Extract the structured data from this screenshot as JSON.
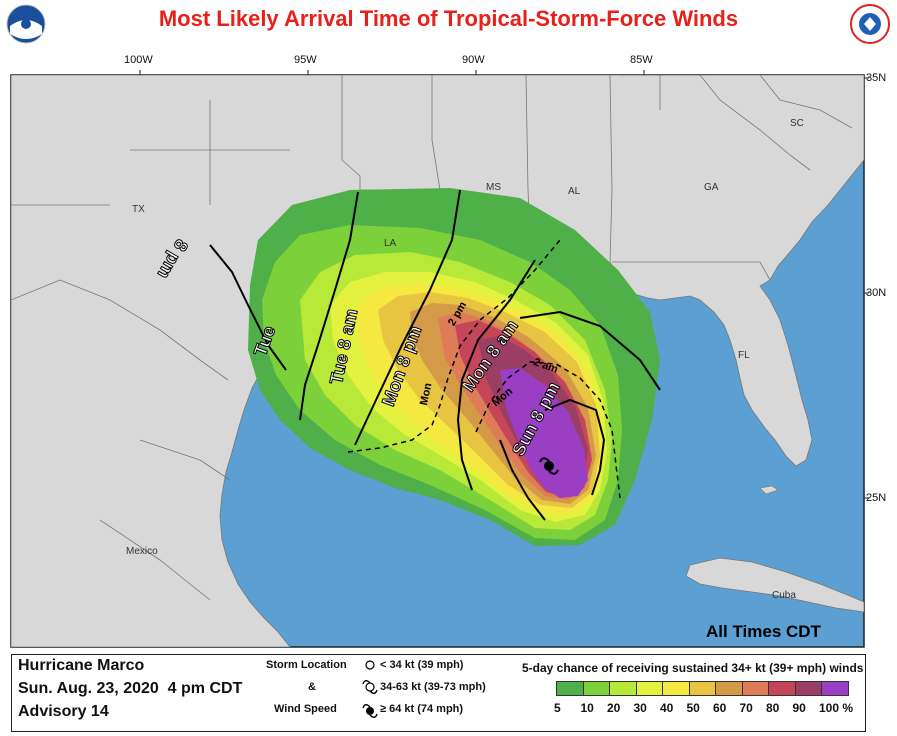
{
  "title": "Most Likely Arrival Time of Tropical-Storm-Force Winds",
  "logos": {
    "left": "noaa-logo",
    "right": "nws-logo",
    "left_text": "NOAA",
    "right_text": "NATIONAL WEATHER SERVICE"
  },
  "longitude_labels": [
    "100W",
    "95W",
    "90W",
    "85W"
  ],
  "latitude_labels": [
    "35N",
    "30N",
    "25N"
  ],
  "place_labels": [
    "TX",
    "LA",
    "MS",
    "AL",
    "GA",
    "SC",
    "FL",
    "Mexico",
    "Cuba"
  ],
  "arrival_labels": [
    {
      "text": "8 pm"
    },
    {
      "text": "Tue"
    },
    {
      "text": "Tue 8 am"
    },
    {
      "text": "Mon 8 pm"
    },
    {
      "text": "2 pm"
    },
    {
      "text": "Mon"
    },
    {
      "text": "Mon 8 am"
    },
    {
      "text": "2 am"
    },
    {
      "text": "Mon"
    },
    {
      "text": "Sun 8 pm"
    }
  ],
  "times_note": "All Times CDT",
  "storm": {
    "name": "Hurricane Marco",
    "date": "Sun. Aug. 23, 2020  4 pm CDT",
    "advisory": "Advisory 14"
  },
  "symbol_legend": {
    "heading1": "Storm Location",
    "amp": "&",
    "heading2": "Wind Speed",
    "items": [
      "< 34 kt (39 mph)",
      "34-63 kt (39-73 mph)",
      "≥ 64 kt (74 mph)"
    ]
  },
  "probability_legend": {
    "title": "5-day chance of receiving sustained 34+ kt (39+ mph) winds",
    "levels": [
      "5",
      "10",
      "20",
      "30",
      "40",
      "50",
      "60",
      "70",
      "80",
      "90",
      "100 %"
    ],
    "colors": [
      "#4fb04a",
      "#7cd13a",
      "#b8e838",
      "#e2f23e",
      "#f5e840",
      "#e8c443",
      "#d59a48",
      "#dd7c56",
      "#c5465a",
      "#9a3e63",
      "#9a3ec3"
    ]
  },
  "colors": {
    "ocean": "#5b9fd3",
    "land": "#d8d8d8",
    "title": "#e8201a"
  }
}
